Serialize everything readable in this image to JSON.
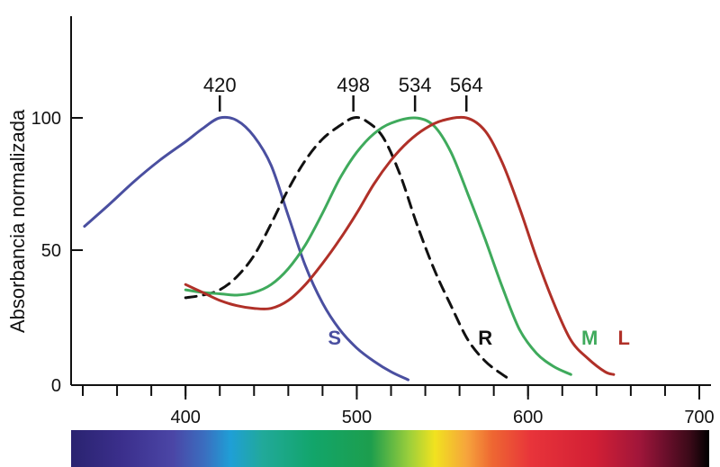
{
  "chart_data": {
    "type": "line",
    "ylabel": "Absorbancia normalizada",
    "xlabel": "",
    "xlim": [
      340,
      700
    ],
    "ylim": [
      0,
      140
    ],
    "x_ticks": [
      {
        "value": 400,
        "label": "400"
      },
      {
        "value": 500,
        "label": "500"
      },
      {
        "value": 600,
        "label": "600"
      },
      {
        "value": 700,
        "label": "700"
      }
    ],
    "y_ticks": [
      {
        "value": 0,
        "label": "0"
      },
      {
        "value": 50,
        "label": "50"
      },
      {
        "value": 100,
        "label": "100"
      }
    ],
    "peaks": [
      {
        "value": 420,
        "label": "420"
      },
      {
        "value": 498,
        "label": "498"
      },
      {
        "value": 534,
        "label": "534"
      },
      {
        "value": 564,
        "label": "564"
      }
    ],
    "series": [
      {
        "name": "S",
        "color": "#4a4fa0",
        "dash": false,
        "label_at": [
          487,
          17
        ],
        "points": [
          [
            341,
            59
          ],
          [
            355,
            67
          ],
          [
            370,
            76
          ],
          [
            385,
            84
          ],
          [
            400,
            91
          ],
          [
            410,
            96
          ],
          [
            420,
            100
          ],
          [
            430,
            99
          ],
          [
            440,
            93
          ],
          [
            450,
            82
          ],
          [
            460,
            63
          ],
          [
            470,
            44
          ],
          [
            480,
            30
          ],
          [
            490,
            20
          ],
          [
            500,
            13
          ],
          [
            510,
            8
          ],
          [
            520,
            4
          ],
          [
            530,
            1
          ]
        ]
      },
      {
        "name": "R",
        "color": "#111111",
        "dash": true,
        "label_at": [
          575,
          17
        ],
        "points": [
          [
            400,
            32
          ],
          [
            410,
            33
          ],
          [
            420,
            35
          ],
          [
            430,
            40
          ],
          [
            440,
            48
          ],
          [
            450,
            60
          ],
          [
            460,
            73
          ],
          [
            470,
            84
          ],
          [
            480,
            92
          ],
          [
            490,
            97
          ],
          [
            498,
            100
          ],
          [
            505,
            99
          ],
          [
            515,
            93
          ],
          [
            525,
            79
          ],
          [
            535,
            60
          ],
          [
            545,
            43
          ],
          [
            555,
            29
          ],
          [
            565,
            16
          ],
          [
            575,
            8
          ],
          [
            585,
            3
          ],
          [
            590,
            1
          ]
        ]
      },
      {
        "name": "M",
        "color": "#3faa5c",
        "dash": false,
        "label_at": [
          636,
          17
        ],
        "points": [
          [
            400,
            35
          ],
          [
            410,
            34
          ],
          [
            420,
            33.5
          ],
          [
            430,
            33
          ],
          [
            440,
            34
          ],
          [
            450,
            37
          ],
          [
            460,
            43
          ],
          [
            470,
            52
          ],
          [
            480,
            64
          ],
          [
            490,
            77
          ],
          [
            500,
            87
          ],
          [
            510,
            94
          ],
          [
            520,
            98
          ],
          [
            534,
            100
          ],
          [
            545,
            97
          ],
          [
            555,
            87
          ],
          [
            565,
            71
          ],
          [
            575,
            54
          ],
          [
            585,
            36
          ],
          [
            595,
            20
          ],
          [
            605,
            11
          ],
          [
            615,
            6
          ],
          [
            625,
            3
          ]
        ]
      },
      {
        "name": "L",
        "color": "#b03028",
        "dash": false,
        "label_at": [
          656,
          17
        ],
        "points": [
          [
            400,
            37
          ],
          [
            410,
            34
          ],
          [
            420,
            31
          ],
          [
            430,
            29
          ],
          [
            440,
            28
          ],
          [
            450,
            28
          ],
          [
            460,
            31
          ],
          [
            470,
            37
          ],
          [
            480,
            45
          ],
          [
            490,
            54
          ],
          [
            500,
            64
          ],
          [
            510,
            75
          ],
          [
            520,
            84
          ],
          [
            530,
            91
          ],
          [
            540,
            96
          ],
          [
            550,
            99
          ],
          [
            564,
            100
          ],
          [
            575,
            95
          ],
          [
            585,
            83
          ],
          [
            595,
            66
          ],
          [
            605,
            47
          ],
          [
            615,
            30
          ],
          [
            625,
            16
          ],
          [
            635,
            9
          ],
          [
            645,
            4
          ],
          [
            650,
            3
          ]
        ]
      }
    ],
    "spectrum": {
      "stops": [
        {
          "at": 0.0,
          "color": "#2a2370"
        },
        {
          "at": 0.08,
          "color": "#3b2f8c"
        },
        {
          "at": 0.16,
          "color": "#4b46a6"
        },
        {
          "at": 0.21,
          "color": "#3a6fc0"
        },
        {
          "at": 0.25,
          "color": "#1f9fd6"
        },
        {
          "at": 0.3,
          "color": "#21a99a"
        },
        {
          "at": 0.38,
          "color": "#12a56a"
        },
        {
          "at": 0.47,
          "color": "#1d9e4d"
        },
        {
          "at": 0.53,
          "color": "#9ccf3b"
        },
        {
          "at": 0.57,
          "color": "#f1e21f"
        },
        {
          "at": 0.62,
          "color": "#f6a43c"
        },
        {
          "at": 0.66,
          "color": "#ee6732"
        },
        {
          "at": 0.72,
          "color": "#e8343a"
        },
        {
          "at": 0.82,
          "color": "#d21f35"
        },
        {
          "at": 0.89,
          "color": "#a1163a"
        },
        {
          "at": 0.93,
          "color": "#6d0f2c"
        },
        {
          "at": 0.97,
          "color": "#3a0a18"
        },
        {
          "at": 1.0,
          "color": "#000000"
        }
      ]
    }
  }
}
